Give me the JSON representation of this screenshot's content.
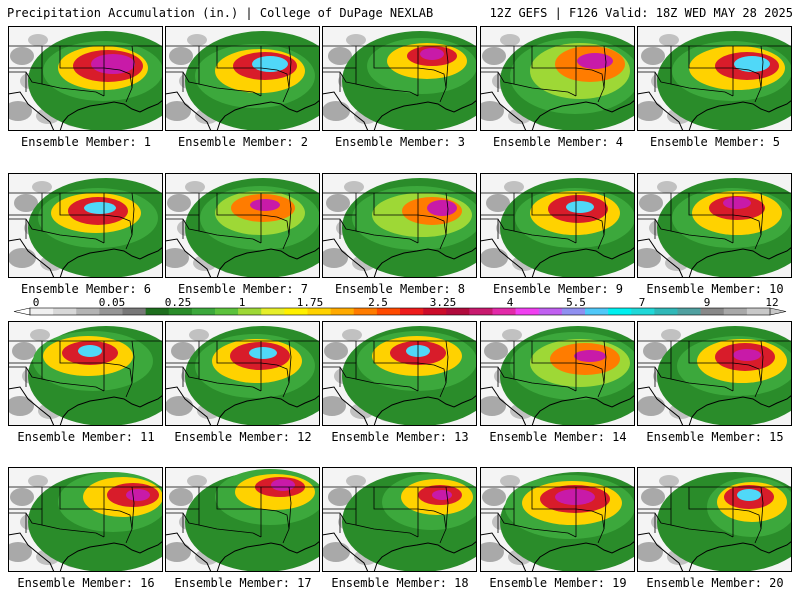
{
  "header": {
    "left": "Precipitation Accumulation (in.) | College of DuPage NEXLAB",
    "right": "12Z GEFS | F126 Valid: 18Z WED MAY 28 2025"
  },
  "panels": [
    {
      "label": "Ensemble Member: 1"
    },
    {
      "label": "Ensemble Member: 2"
    },
    {
      "label": "Ensemble Member: 3"
    },
    {
      "label": "Ensemble Member: 4"
    },
    {
      "label": "Ensemble Member: 5"
    },
    {
      "label": "Ensemble Member: 6"
    },
    {
      "label": "Ensemble Member: 7"
    },
    {
      "label": "Ensemble Member: 8"
    },
    {
      "label": "Ensemble Member: 9"
    },
    {
      "label": "Ensemble Member: 10"
    },
    {
      "label": "Ensemble Member: 11"
    },
    {
      "label": "Ensemble Member: 12"
    },
    {
      "label": "Ensemble Member: 13"
    },
    {
      "label": "Ensemble Member: 14"
    },
    {
      "label": "Ensemble Member: 15"
    },
    {
      "label": "Ensemble Member: 16"
    },
    {
      "label": "Ensemble Member: 17"
    },
    {
      "label": "Ensemble Member: 18"
    },
    {
      "label": "Ensemble Member: 19"
    },
    {
      "label": "Ensemble Member: 20"
    }
  ],
  "colorbar": {
    "labels": [
      "0",
      "0.05",
      "0.25",
      "1",
      "1.75",
      "2.5",
      "3.25",
      "4",
      "5.5",
      "7",
      "9",
      "12"
    ],
    "colors": [
      "#f0f0f0",
      "#d8d8d8",
      "#b4b4b4",
      "#969696",
      "#787878",
      "#1e6e1e",
      "#2a8c2a",
      "#3ca83c",
      "#5cc23c",
      "#9ed836",
      "#e6ee2a",
      "#fff000",
      "#ffd200",
      "#ffaa00",
      "#ff7c00",
      "#ff4a00",
      "#ee1c1c",
      "#cc0c2a",
      "#b00a3c",
      "#c81a6e",
      "#e22aa8",
      "#f040f0",
      "#c060f0",
      "#9090f0",
      "#50c8f8",
      "#00f0f0",
      "#20d8d8",
      "#30b8b8",
      "#50a0a0",
      "#888888",
      "#a8a8a8",
      "#c8c8c8"
    ]
  }
}
